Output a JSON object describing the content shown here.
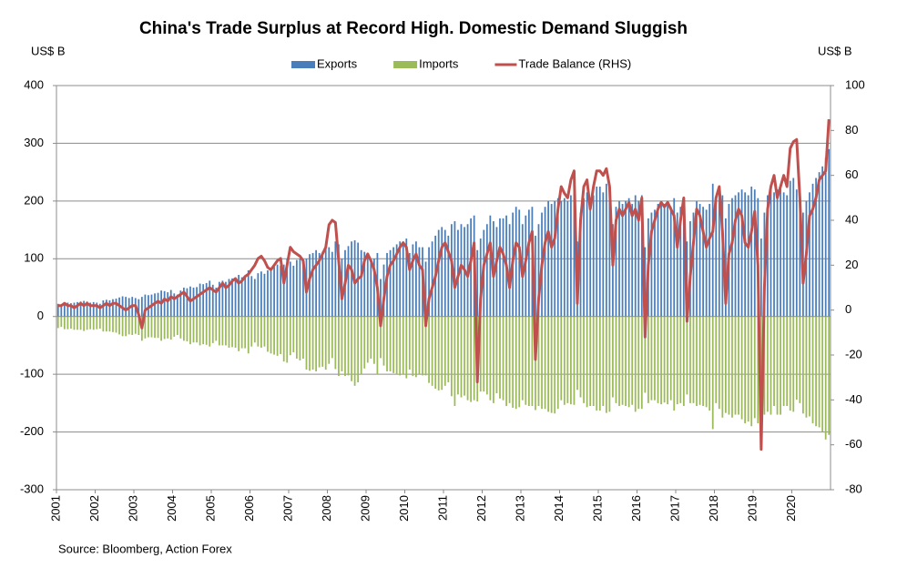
{
  "chart_data": {
    "type": "bar-line",
    "title": "China's Trade Surplus  at Record High. Domestic Demand  Sluggish",
    "y_label": "US$ B",
    "y2_label": "US$ B",
    "source": "Source: Bloomberg, Action Forex",
    "legend": "top",
    "grid": true,
    "ylim": [
      -300,
      400
    ],
    "yticks": [
      -300,
      -200,
      -100,
      0,
      100,
      200,
      300,
      400
    ],
    "y2lim": [
      -80,
      100
    ],
    "y2ticks": [
      -80,
      -60,
      -40,
      -20,
      0,
      20,
      40,
      60,
      80,
      100
    ],
    "categories": [
      "2001",
      null,
      null,
      null,
      null,
      null,
      null,
      null,
      null,
      null,
      null,
      null,
      "2002",
      null,
      null,
      null,
      null,
      null,
      null,
      null,
      null,
      null,
      null,
      null,
      "2003",
      null,
      null,
      null,
      null,
      null,
      null,
      null,
      null,
      null,
      null,
      null,
      "2004",
      null,
      null,
      null,
      null,
      null,
      null,
      null,
      null,
      null,
      null,
      null,
      "2005",
      null,
      null,
      null,
      null,
      null,
      null,
      null,
      null,
      null,
      null,
      null,
      "2006",
      null,
      null,
      null,
      null,
      null,
      null,
      null,
      null,
      null,
      null,
      null,
      "2007",
      null,
      null,
      null,
      null,
      null,
      null,
      null,
      null,
      null,
      null,
      null,
      "2008",
      null,
      null,
      null,
      null,
      null,
      null,
      null,
      null,
      null,
      null,
      null,
      "2009",
      null,
      null,
      null,
      null,
      null,
      null,
      null,
      null,
      null,
      null,
      null,
      "2010",
      null,
      null,
      null,
      null,
      null,
      null,
      null,
      null,
      null,
      null,
      null,
      "2011",
      null,
      null,
      null,
      null,
      null,
      null,
      null,
      null,
      null,
      null,
      null,
      "2012",
      null,
      null,
      null,
      null,
      null,
      null,
      null,
      null,
      null,
      null,
      null,
      "2013",
      null,
      null,
      null,
      null,
      null,
      null,
      null,
      null,
      null,
      null,
      null,
      "2014",
      null,
      null,
      null,
      null,
      null,
      null,
      null,
      null,
      null,
      null,
      null,
      "2015",
      null,
      null,
      null,
      null,
      null,
      null,
      null,
      null,
      null,
      null,
      null,
      "2016",
      null,
      null,
      null,
      null,
      null,
      null,
      null,
      null,
      null,
      null,
      null,
      "2017",
      null,
      null,
      null,
      null,
      null,
      null,
      null,
      null,
      null,
      null,
      null,
      "2018",
      null,
      null,
      null,
      null,
      null,
      null,
      null,
      null,
      null,
      null,
      null,
      "2019",
      null,
      null,
      null,
      null,
      null,
      null,
      null,
      null,
      null,
      null,
      null,
      "2020",
      null,
      null,
      null,
      null,
      null,
      null,
      null,
      null,
      null,
      null,
      null
    ],
    "series": [
      {
        "name": "Exports",
        "type": "bar",
        "color": "#4a7ebb",
        "values": [
          22,
          20,
          25,
          24,
          23,
          24,
          25,
          26,
          27,
          26,
          24,
          25,
          24,
          22,
          28,
          29,
          28,
          30,
          31,
          33,
          35,
          34,
          32,
          34,
          32,
          30,
          34,
          38,
          37,
          38,
          40,
          41,
          45,
          44,
          42,
          46,
          40,
          38,
          45,
          50,
          49,
          52,
          50,
          51,
          57,
          56,
          58,
          62,
          55,
          50,
          60,
          62,
          60,
          65,
          66,
          68,
          72,
          68,
          70,
          80,
          70,
          65,
          75,
          78,
          74,
          80,
          82,
          86,
          90,
          88,
          90,
          100,
          95,
          88,
          98,
          100,
          95,
          100,
          108,
          110,
          115,
          110,
          112,
          120,
          120,
          112,
          130,
          125,
          100,
          115,
          122,
          130,
          132,
          128,
          115,
          112,
          105,
          95,
          100,
          110,
          65,
          90,
          110,
          115,
          120,
          125,
          130,
          130,
          135,
          110,
          125,
          130,
          120,
          120,
          95,
          120,
          130,
          140,
          150,
          155,
          150,
          140,
          160,
          165,
          150,
          160,
          155,
          160,
          170,
          175,
          115,
          135,
          150,
          160,
          175,
          165,
          155,
          170,
          170,
          175,
          160,
          180,
          190,
          185,
          160,
          175,
          185,
          190,
          140,
          160,
          180,
          190,
          200,
          195,
          200,
          205,
          200,
          205,
          200,
          210,
          215,
          130,
          180,
          205,
          215,
          200,
          210,
          225,
          225,
          215,
          230,
          220,
          160,
          190,
          200,
          195,
          200,
          205,
          195,
          210,
          200,
          210,
          120,
          170,
          180,
          185,
          195,
          200,
          195,
          200,
          190,
          205,
          180,
          190,
          205,
          130,
          165,
          180,
          200,
          195,
          190,
          185,
          195,
          230,
          200,
          215,
          210,
          170,
          195,
          205,
          210,
          215,
          220,
          215,
          210,
          225,
          220,
          205,
          135,
          180,
          210,
          225,
          215,
          220,
          225,
          215,
          210,
          235,
          240,
          220,
          200,
          180,
          200,
          215,
          230,
          240,
          250,
          260,
          275,
          290
        ]
      },
      {
        "name": "Imports",
        "type": "bar",
        "color": "#9bbb59",
        "values": [
          -20,
          -18,
          -22,
          -22,
          -21,
          -23,
          -23,
          -23,
          -25,
          -23,
          -22,
          -23,
          -22,
          -21,
          -26,
          -26,
          -26,
          -27,
          -28,
          -31,
          -34,
          -34,
          -31,
          -32,
          -30,
          -32,
          -42,
          -38,
          -36,
          -36,
          -37,
          -37,
          -42,
          -39,
          -38,
          -40,
          -35,
          -32,
          -38,
          -42,
          -43,
          -48,
          -45,
          -45,
          -50,
          -48,
          -49,
          -52,
          -46,
          -42,
          -50,
          -50,
          -50,
          -54,
          -53,
          -54,
          -60,
          -55,
          -55,
          -64,
          -52,
          -45,
          -52,
          -54,
          -52,
          -61,
          -64,
          -66,
          -68,
          -65,
          -78,
          -80,
          -67,
          -62,
          -73,
          -76,
          -73,
          -92,
          -94,
          -92,
          -95,
          -88,
          -87,
          -92,
          -82,
          -72,
          -91,
          -103,
          -95,
          -103,
          -102,
          -112,
          -120,
          -114,
          -100,
          -90,
          -80,
          -73,
          -82,
          -100,
          -72,
          -85,
          -95,
          -95,
          -98,
          -100,
          -102,
          -100,
          -107,
          -92,
          -103,
          -105,
          -100,
          -102,
          -102,
          -115,
          -120,
          -125,
          -128,
          -127,
          -120,
          -114,
          -138,
          -155,
          -135,
          -140,
          -137,
          -145,
          -148,
          -145,
          -147,
          -130,
          -130,
          -135,
          -145,
          -150,
          -133,
          -142,
          -145,
          -155,
          -150,
          -158,
          -160,
          -157,
          -145,
          -153,
          -155,
          -155,
          -162,
          -155,
          -160,
          -160,
          -165,
          -167,
          -168,
          -160,
          -145,
          -153,
          -150,
          -152,
          -153,
          -127,
          -140,
          -150,
          -157,
          -155,
          -155,
          -163,
          -163,
          -155,
          -167,
          -165,
          -140,
          -150,
          -155,
          -153,
          -155,
          -157,
          -153,
          -165,
          -160,
          -160,
          -132,
          -150,
          -145,
          -145,
          -150,
          -152,
          -149,
          -152,
          -145,
          -163,
          -152,
          -150,
          -155,
          -135,
          -150,
          -150,
          -155,
          -153,
          -155,
          -157,
          -163,
          -195,
          -150,
          -160,
          -175,
          -167,
          -170,
          -175,
          -170,
          -170,
          -178,
          -185,
          -182,
          -190,
          -176,
          -185,
          -197,
          -170,
          -165,
          -170,
          -155,
          -170,
          -170,
          -155,
          -155,
          -163,
          -165,
          -144,
          -150,
          -168,
          -175,
          -173,
          -185,
          -190,
          -192,
          -200,
          -213,
          -205
        ]
      },
      {
        "name": "Trade Balance (RHS)",
        "type": "line",
        "axis": "y2",
        "color": "#c0504d",
        "values": [
          2,
          2,
          3,
          2,
          2,
          1,
          2,
          3,
          2,
          3,
          2,
          2,
          2,
          1,
          2,
          3,
          2,
          3,
          3,
          2,
          1,
          0,
          1,
          2,
          2,
          -2,
          -8,
          0,
          1,
          2,
          3,
          4,
          3,
          5,
          4,
          6,
          5,
          6,
          7,
          8,
          6,
          4,
          5,
          6,
          7,
          8,
          9,
          10,
          9,
          8,
          10,
          12,
          10,
          11,
          13,
          14,
          12,
          13,
          15,
          16,
          18,
          20,
          23,
          24,
          22,
          19,
          18,
          20,
          22,
          23,
          12,
          20,
          28,
          26,
          25,
          24,
          22,
          8,
          14,
          18,
          20,
          22,
          25,
          28,
          38,
          40,
          39,
          22,
          5,
          12,
          20,
          18,
          12,
          14,
          15,
          22,
          25,
          22,
          18,
          10,
          -7,
          5,
          15,
          20,
          22,
          25,
          28,
          30,
          28,
          18,
          22,
          25,
          20,
          18,
          -7,
          5,
          10,
          15,
          22,
          28,
          30,
          26,
          22,
          10,
          15,
          20,
          18,
          15,
          22,
          30,
          -32,
          5,
          20,
          25,
          30,
          15,
          22,
          28,
          25,
          20,
          10,
          22,
          30,
          28,
          15,
          22,
          30,
          35,
          -22,
          5,
          20,
          30,
          35,
          28,
          32,
          45,
          55,
          52,
          50,
          58,
          62,
          3,
          40,
          55,
          58,
          45,
          55,
          62,
          62,
          60,
          63,
          55,
          20,
          40,
          45,
          42,
          45,
          48,
          42,
          45,
          40,
          50,
          -12,
          20,
          35,
          40,
          45,
          48,
          46,
          48,
          45,
          42,
          28,
          40,
          50,
          -5,
          15,
          30,
          45,
          42,
          35,
          28,
          32,
          35,
          50,
          55,
          35,
          3,
          25,
          30,
          40,
          45,
          42,
          30,
          28,
          35,
          44,
          20,
          -62,
          10,
          45,
          55,
          60,
          50,
          55,
          60,
          55,
          72,
          75,
          76,
          50,
          12,
          25,
          42,
          45,
          50,
          58,
          60,
          62,
          85
        ]
      }
    ]
  }
}
